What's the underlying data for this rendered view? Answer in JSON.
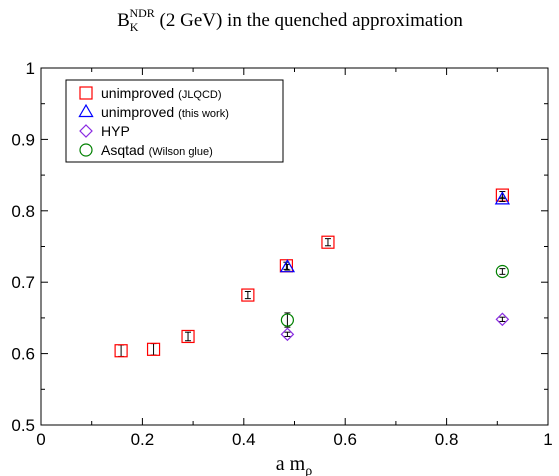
{
  "chart_data": {
    "type": "scatter",
    "title": {
      "main": "B",
      "sup": "NDR",
      "sub": "K",
      "rest": " (2 GeV) in the quenched approximation"
    },
    "xlabel": {
      "main": "a m",
      "sub": "ρ"
    },
    "ylabel": "",
    "xlim": [
      0,
      1
    ],
    "ylim": [
      0.5,
      1
    ],
    "xticks": [
      "0",
      "0.2",
      "0.4",
      "0.6",
      "0.8",
      "1"
    ],
    "yticks": [
      "0.5",
      "0.6",
      "0.7",
      "0.8",
      "0.9",
      "1"
    ],
    "grid": false,
    "legend_position": "top-left",
    "series": [
      {
        "name": "unimproved",
        "name_note": "(JLQCD)",
        "marker": "square",
        "color": "#ff0000",
        "points": [
          {
            "x": 0.158,
            "y": 0.604,
            "err": 0.008
          },
          {
            "x": 0.222,
            "y": 0.606,
            "err": 0.008
          },
          {
            "x": 0.29,
            "y": 0.624,
            "err": 0.006
          },
          {
            "x": 0.408,
            "y": 0.682,
            "err": 0.005
          },
          {
            "x": 0.484,
            "y": 0.723,
            "err": 0.005
          },
          {
            "x": 0.566,
            "y": 0.756,
            "err": 0.005
          },
          {
            "x": 0.91,
            "y": 0.822,
            "err": 0.005
          }
        ]
      },
      {
        "name": "unimproved",
        "name_note": "(this work)",
        "marker": "triangle",
        "color": "#0000ff",
        "points": [
          {
            "x": 0.486,
            "y": 0.721,
            "err": 0.004
          },
          {
            "x": 0.91,
            "y": 0.816,
            "err": 0.003
          }
        ]
      },
      {
        "name": "HYP",
        "name_note": "",
        "marker": "diamond",
        "color": "#8a2be2",
        "points": [
          {
            "x": 0.486,
            "y": 0.627,
            "err": 0.003
          },
          {
            "x": 0.91,
            "y": 0.648,
            "err": 0.003
          }
        ]
      },
      {
        "name": "Asqtad",
        "name_note": "(Wilson glue)",
        "marker": "circle",
        "color": "#008000",
        "points": [
          {
            "x": 0.486,
            "y": 0.647,
            "err": 0.01
          },
          {
            "x": 0.91,
            "y": 0.715,
            "err": 0.004
          }
        ]
      }
    ]
  }
}
